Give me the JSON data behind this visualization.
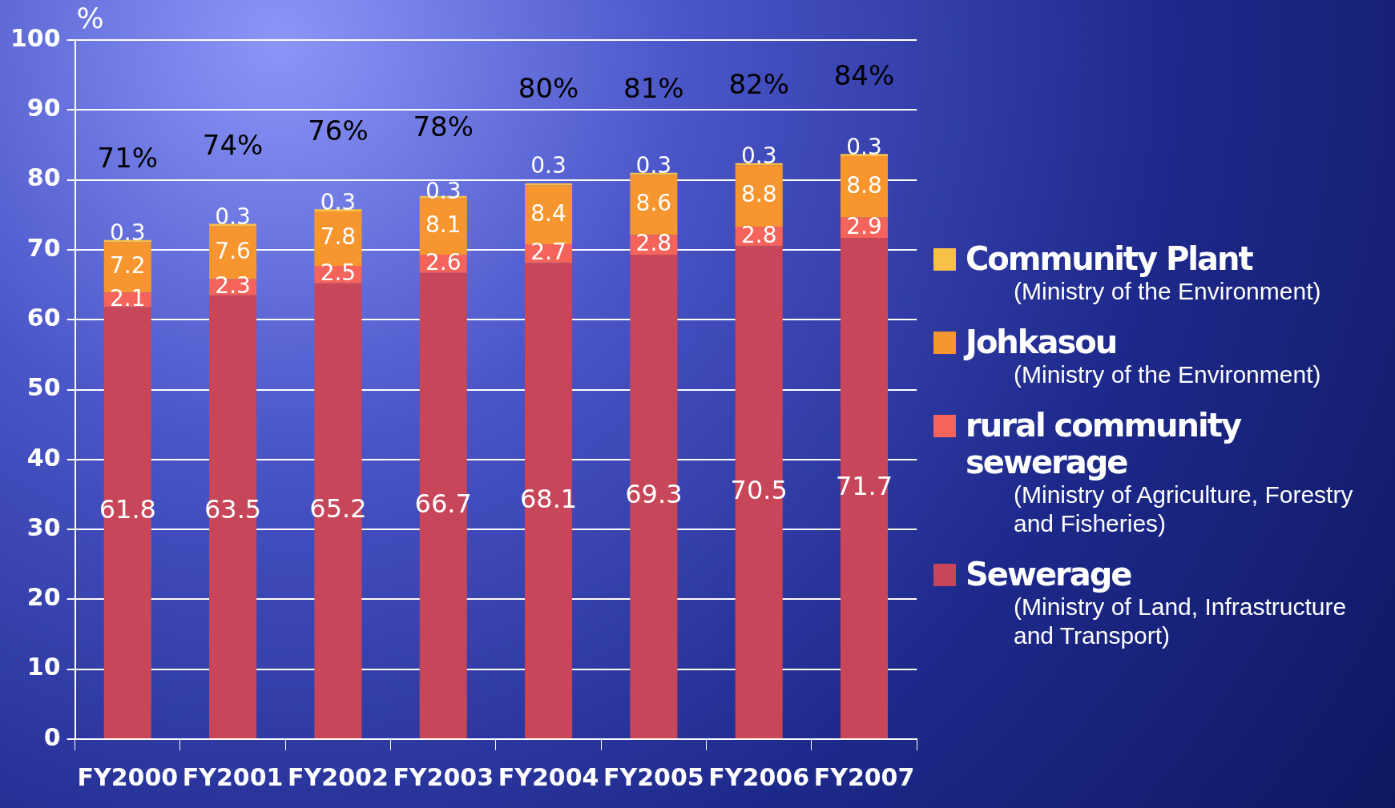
{
  "chart_data": {
    "type": "bar",
    "stacked": true,
    "ylabel": "%",
    "categories": [
      "FY2000",
      "FY2001",
      "FY2002",
      "FY2003",
      "FY2004",
      "FY2005",
      "FY2006",
      "FY2007"
    ],
    "series": [
      {
        "name": "Sewerage (Ministry of Land, Infrastructure and Transport)",
        "color": "#c8465a",
        "values": [
          61.8,
          63.5,
          65.2,
          66.7,
          68.1,
          69.3,
          70.5,
          71.7
        ]
      },
      {
        "name": "rural community sewerage (Ministry of Agriculture, Forestry and Fisheries)",
        "color": "#f4645a",
        "values": [
          2.1,
          2.3,
          2.5,
          2.6,
          2.7,
          2.8,
          2.8,
          2.9
        ]
      },
      {
        "name": "Johkasou (Ministry of the Environment)",
        "color": "#f7962e",
        "values": [
          7.2,
          7.6,
          7.8,
          8.1,
          8.4,
          8.6,
          8.8,
          8.8
        ]
      },
      {
        "name": "Community Plant (Ministry of the Environment)",
        "color": "#f7c048",
        "values": [
          0.3,
          0.3,
          0.3,
          0.3,
          0.3,
          0.3,
          0.3,
          0.3
        ]
      }
    ],
    "totals": [
      "71%",
      "74%",
      "76%",
      "78%",
      "80%",
      "81%",
      "82%",
      "84%"
    ],
    "data_labels": true,
    "ylim": [
      0,
      100
    ],
    "yticks": [
      0,
      10,
      20,
      30,
      40,
      50,
      60,
      70,
      80,
      90,
      100
    ],
    "grid": "y",
    "legend": "right"
  }
}
